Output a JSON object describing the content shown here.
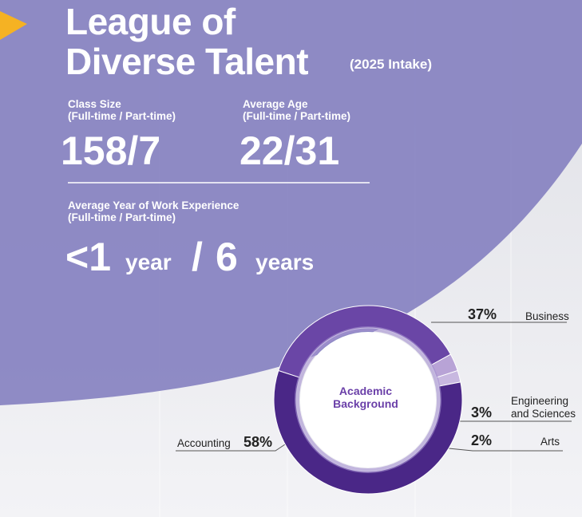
{
  "header": {
    "title_line1": "League of",
    "title_line2": "Diverse Talent",
    "intake": "(2025 Intake)"
  },
  "stats": {
    "class_size": {
      "label": "Class Size",
      "sublabel": "(Full-time / Part-time)",
      "value": "158/7"
    },
    "average_age": {
      "label": "Average Age",
      "sublabel": "(Full-time / Part-time)",
      "value": "22/31"
    },
    "work_experience": {
      "label": "Average Year of Work Experience",
      "sublabel": "(Full-time / Part-time)",
      "ft_value": "<1",
      "ft_unit": "year",
      "separator": "/",
      "pt_value": "6",
      "pt_unit": "years"
    }
  },
  "chart_data": {
    "type": "pie",
    "title": "Academic Background",
    "title_line1": "Academic",
    "title_line2": "Background",
    "categories": [
      "Business",
      "Engineering and Sciences",
      "Arts",
      "Accounting"
    ],
    "values": [
      37,
      3,
      2,
      58
    ],
    "labels": {
      "business_pct": "37%",
      "business": "Business",
      "eng_pct": "3%",
      "eng_line1": "Engineering",
      "eng_line2": "and Sciences",
      "arts_pct": "2%",
      "arts": "Arts",
      "acc_pct": "58%",
      "acc": "Accounting"
    }
  },
  "colors": {
    "panel": "#8985c2",
    "accent": "#f5b223",
    "business": "#6a46a6",
    "accounting": "#4a2787",
    "eng": "#b8a3d6",
    "arts": "#c8b8e0"
  }
}
